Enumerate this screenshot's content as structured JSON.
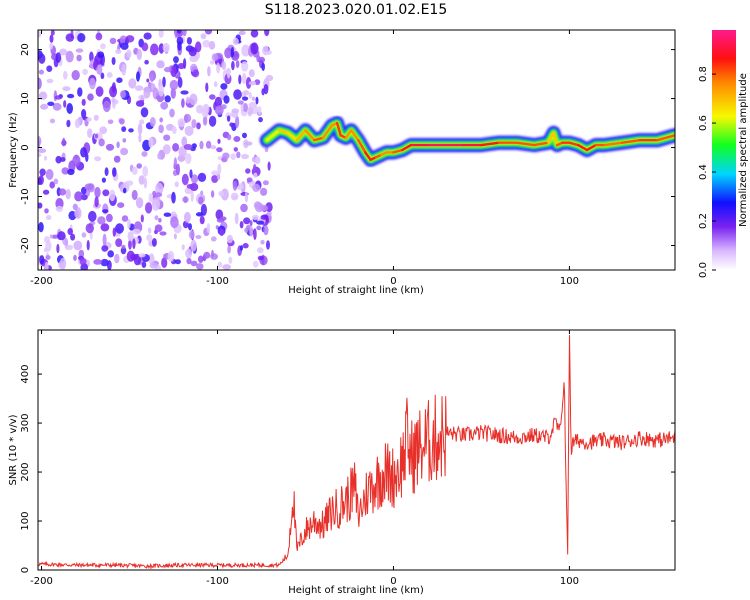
{
  "title": "S118.2023.020.01.02.E15",
  "colors": {
    "signal": "#e8302a",
    "noise": "#7a22f0",
    "frame": "#000000"
  },
  "chart_data": [
    {
      "type": "heatmap",
      "xlabel": "Height of straight line (km)",
      "ylabel": "Frequency (Hz)",
      "xlim": [
        -202,
        160
      ],
      "ylim": [
        -25,
        24
      ],
      "xticks": [
        -200,
        -100,
        0,
        100
      ],
      "yticks": [
        -20,
        -10,
        0,
        10,
        20
      ],
      "noise_region_x": [
        -202,
        -70
      ],
      "ridge": {
        "x": [
          -72,
          -65,
          -60,
          -55,
          -50,
          -45,
          -40,
          -35,
          -32,
          -30,
          -27,
          -24,
          -20,
          -16,
          -13,
          -10,
          -7,
          -4,
          0,
          5,
          10,
          20,
          30,
          40,
          50,
          60,
          70,
          80,
          88,
          91,
          93,
          96,
          100,
          105,
          110,
          115,
          120,
          130,
          140,
          150,
          160
        ],
        "y": [
          1.5,
          3.5,
          3.0,
          1.5,
          3.5,
          1.5,
          2.0,
          4.5,
          5.0,
          2.5,
          2.0,
          3.5,
          1.5,
          -1.0,
          -2.5,
          -2.0,
          -1.5,
          -1.0,
          -1.0,
          -0.5,
          0.5,
          0.5,
          0.5,
          0.5,
          0.5,
          1.0,
          1.0,
          0.5,
          1.0,
          3.0,
          0.5,
          1.0,
          1.0,
          0.5,
          -0.5,
          0.5,
          0.5,
          1.0,
          1.5,
          1.5,
          2.5
        ],
        "value": [
          0.45,
          0.8,
          0.6,
          0.75,
          0.7,
          0.85,
          0.8,
          0.75,
          0.8,
          0.9,
          0.8,
          0.75,
          0.8,
          0.85,
          0.9,
          0.85,
          0.8,
          0.75,
          0.8,
          0.85,
          0.9,
          0.95,
          0.95,
          0.95,
          0.9,
          0.85,
          0.8,
          0.85,
          0.8,
          0.6,
          0.8,
          0.85,
          0.85,
          0.85,
          0.9,
          0.85,
          0.8,
          0.8,
          0.85,
          0.85,
          0.8
        ]
      },
      "colorbar": {
        "label": "Normalized spectral amplitude",
        "range": [
          0,
          0.98
        ],
        "ticks": [
          0.0,
          0.2,
          0.4,
          0.6,
          0.8
        ],
        "tick_labels": [
          "0.0",
          "0.2",
          "0.4",
          "0.6",
          "0.8"
        ]
      }
    },
    {
      "type": "line",
      "xlabel": "Height of straight line (km)",
      "ylabel": "SNR (10 * v/v)",
      "xlim": [
        -202,
        160
      ],
      "ylim": [
        0,
        490
      ],
      "xticks": [
        -200,
        -100,
        0,
        100
      ],
      "yticks": [
        0,
        100,
        200,
        300,
        400
      ],
      "series": [
        {
          "x": [
            -202,
            -180,
            -160,
            -140,
            -120,
            -100,
            -80,
            -65,
            -60,
            -57,
            -55,
            -50,
            -45,
            -40,
            -35,
            -30,
            -25,
            -22,
            -20,
            -15,
            -10,
            -5,
            0,
            5,
            8,
            10,
            15,
            20,
            25,
            30,
            40,
            50,
            60,
            70,
            80,
            88,
            92,
            95,
            97,
            98,
            99,
            100,
            101,
            102,
            105,
            110,
            120,
            130,
            140,
            150,
            160
          ],
          "y": [
            12,
            10,
            10,
            8,
            10,
            10,
            10,
            10,
            30,
            160,
            40,
            80,
            100,
            90,
            120,
            130,
            150,
            170,
            110,
            160,
            180,
            200,
            190,
            220,
            270,
            230,
            250,
            260,
            270,
            280,
            275,
            280,
            275,
            270,
            275,
            270,
            300,
            280,
            400,
            200,
            30,
            500,
            240,
            260,
            265,
            260,
            265,
            260,
            270,
            265,
            270
          ]
        }
      ]
    }
  ]
}
